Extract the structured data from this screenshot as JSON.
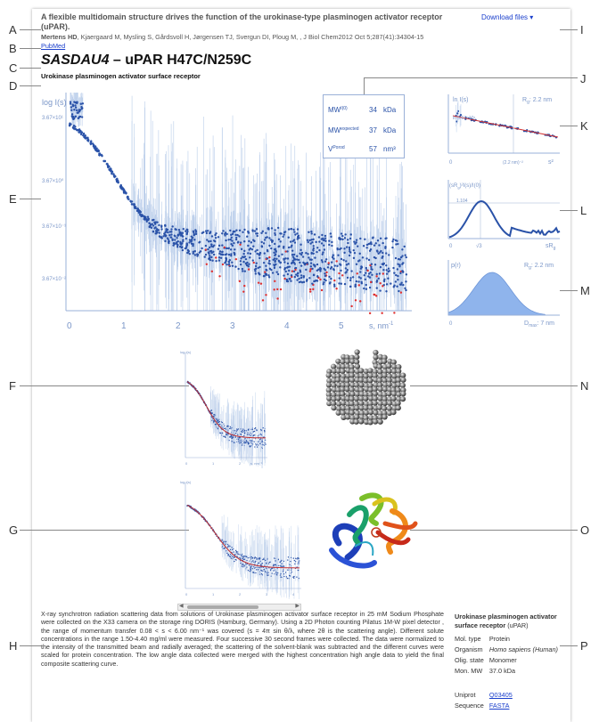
{
  "letters": [
    "A",
    "B",
    "C",
    "D",
    "E",
    "F",
    "G",
    "H",
    "I",
    "J",
    "K",
    "L",
    "M",
    "N",
    "O",
    "P"
  ],
  "header": {
    "title": "A flexible multidomain structure drives the function of the urokinase-type plasminogen activator receptor (uPAR).",
    "authors_bold": "Mertens HD",
    "authors": ", Kjaergaard M, Mysling S, Gårdsvoll H, Jørgensen TJ, Svergun DI, Ploug M, , J Biol Chem2012 Oct 5;287(41):34304-15",
    "pubmed": "PubMed",
    "download": "Download files ▾",
    "code": "SASDAU4",
    "code_rest": " – uPAR H47C/N259C",
    "subtitle": "Urokinase plasminogen activator surface receptor"
  },
  "main_plot": {
    "ylabel": "log I(s)",
    "yticks": [
      "3.67×10¹",
      "3.67×10⁰",
      "3.67×10⁻¹",
      "3.67×10⁻²"
    ],
    "xticks": [
      "0",
      "1",
      "2",
      "3",
      "4",
      "5"
    ],
    "xlabel": "s, nm",
    "xlabel_sup": "-1"
  },
  "params": {
    "rows": [
      {
        "label": "MW",
        "sup": "I(0)",
        "value": "34",
        "unit": "kDa"
      },
      {
        "label": "MW",
        "sup": "expected",
        "value": "37",
        "unit": "kDa"
      },
      {
        "label": "V",
        "sup": "Porod",
        "value": "57",
        "unit": "nm³"
      }
    ]
  },
  "guinier": {
    "ylabel": "ln I(s)",
    "rg": "R",
    "rg_sub": "g",
    "rg_val": ": 2.2 nm",
    "tick": "ln 3.67×10¹",
    "x0": "0",
    "xmid": "(2.2 nm)⁻²",
    "xlabel": "s²"
  },
  "kratky": {
    "ylabel": "(sR",
    "ylabel2": ")²I(s)/I(0)",
    "tick": "1.104",
    "x0": "0",
    "xmid": "√3",
    "xlabel": "sR",
    "xlabel_sub": "g"
  },
  "pr": {
    "ylabel": "p(r)",
    "rg": "R",
    "rg_sub": "g",
    "rg_val": ": 2.2 nm",
    "x0": "0",
    "dmax": "D",
    "dmax_sub": "max",
    "dmax_val": ": 7 nm"
  },
  "small_plot_f": {
    "ylabel": "log I(s)",
    "xticks": [
      "0",
      "1",
      "2"
    ],
    "xlabel": "s, nm⁻¹"
  },
  "small_plot_g": {
    "ylabel": "log I(s)",
    "xticks": [
      "0",
      "1",
      "2",
      "3",
      "4"
    ]
  },
  "description": "X-ray synchrotron radiation scattering data from solutions of Urokinase plasminogen activator surface receptor in 25 mM Sodium Phosphate were collected on the X33 camera on the storage ring DORIS (Hamburg, Germany). Using a 2D Photon counting Pilatus 1M-W pixel detector , the range of momentum transfer 0.08 < s < 6.00 nm⁻¹ was covered (s = 4π sin θ/λ, where 2θ is the scattering angle). Different solute concentrations in the range 1.50-4.40 mg/ml were measured. Four successive 30 second frames were collected. The data were normalized to the intensity of the transmitted beam and radially averaged; the scattering of the solvent-blank was subtracted and the different curves were scaled for protein concentration. The low angle data collected were merged with the highest concentration high angle data to yield the final composite scattering curve.",
  "sample": {
    "name": "Urokinase plasminogen activator surface receptor",
    "name_suffix": " (uPAR)",
    "rows": [
      {
        "k": "Mol. type",
        "v": "Protein",
        "italic": false
      },
      {
        "k": "Organism",
        "v": "Homo sapiens (Human)",
        "italic": true
      },
      {
        "k": "Olig. state",
        "v": "Monomer",
        "italic": false
      },
      {
        "k": "Mon. MW",
        "v": "37.0 kDa",
        "italic": false
      }
    ],
    "uniprot_label": "Uniprot",
    "uniprot_val": "Q03405",
    "sequence_label": "Sequence",
    "sequence_val": "FASTA"
  },
  "colors": {
    "data": "#2a52a8",
    "fit": "#d03030",
    "errbar": "#b9cdea",
    "neg": "#e03030",
    "pr_fill": "#8fb4ec"
  }
}
